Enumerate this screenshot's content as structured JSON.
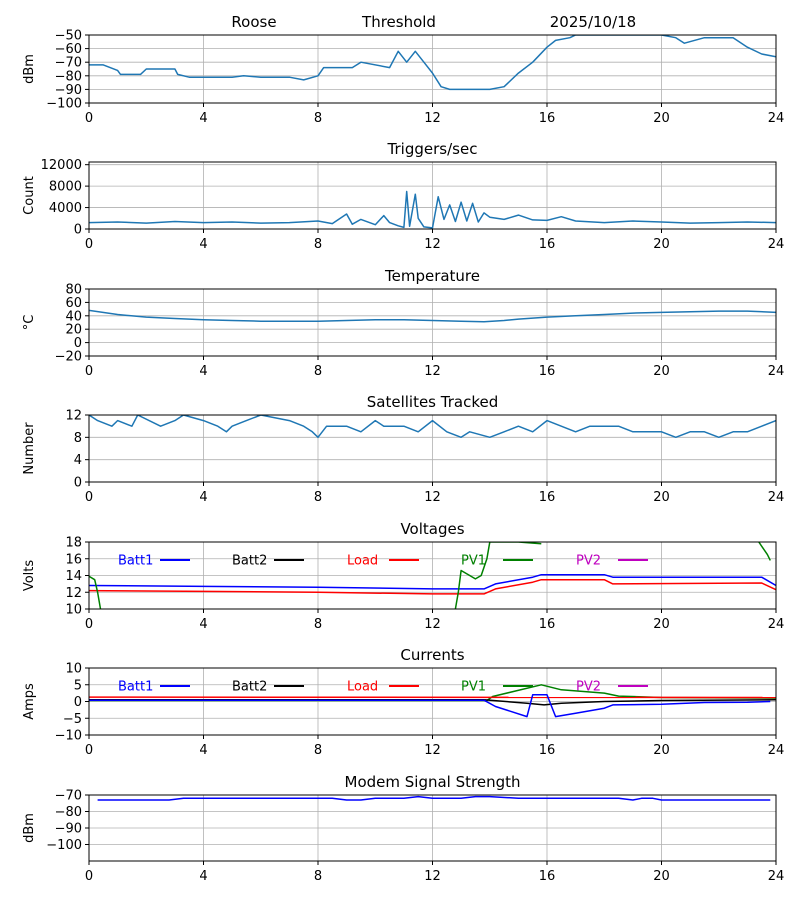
{
  "header": {
    "station": "Roose",
    "mode": "Threshold",
    "date": "2025/10/18"
  },
  "colors": {
    "line": "#1f77b4",
    "grid": "#b0b0b0",
    "batt1": "#0000ff",
    "batt2": "#000000",
    "load": "#ff0000",
    "pv1": "#008000",
    "pv2": "#bf00bf"
  },
  "chart_data": [
    {
      "id": "threshold",
      "type": "line",
      "title": "",
      "ylabel": "dBm",
      "xlabel": "",
      "xlim": [
        0,
        24
      ],
      "xticks": [
        0,
        4,
        8,
        12,
        16,
        20,
        24
      ],
      "ylim": [
        -100,
        -50
      ],
      "yticks": [
        -100,
        -90,
        -80,
        -70,
        -60,
        -50
      ],
      "ytick_labels": [
        "−100",
        "−90",
        "−80",
        "−70",
        "−60",
        "−50"
      ],
      "series": [
        {
          "name": "Threshold",
          "color": "#1f77b4",
          "x": [
            0,
            0.5,
            1,
            1.1,
            1.8,
            2,
            3,
            3.1,
            3.5,
            4,
            5,
            5.4,
            6,
            7,
            7.5,
            8,
            8.2,
            9,
            9.2,
            9.5,
            10.5,
            10.8,
            11.1,
            11.4,
            11.7,
            12,
            12.3,
            12.6,
            13,
            13.4,
            14,
            14.5,
            15,
            15.5,
            16,
            16.3,
            16.8,
            17,
            18,
            19,
            20,
            20.5,
            20.8,
            21.5,
            22,
            22.5,
            23,
            23.5,
            24
          ],
          "y": [
            -72,
            -72,
            -76,
            -79,
            -79,
            -75,
            -75,
            -79,
            -81,
            -81,
            -81,
            -80,
            -81,
            -81,
            -83,
            -80,
            -74,
            -74,
            -74,
            -70,
            -74,
            -62,
            -70,
            -62,
            -70,
            -78,
            -88,
            -90,
            -90,
            -90,
            -90,
            -88,
            -78,
            -70,
            -59,
            -54,
            -52,
            -50,
            -50,
            -50,
            -50,
            -52,
            -56,
            -52,
            -52,
            -52,
            -59,
            -64,
            -66
          ]
        }
      ]
    },
    {
      "id": "triggers",
      "type": "line",
      "title": "Triggers/sec",
      "ylabel": "Count",
      "xlabel": "",
      "xlim": [
        0,
        24
      ],
      "xticks": [
        0,
        4,
        8,
        12,
        16,
        20,
        24
      ],
      "ylim": [
        0,
        12500
      ],
      "yticks": [
        0,
        4000,
        8000,
        12000
      ],
      "ytick_labels": [
        "0",
        "4000",
        "8000",
        "12000"
      ],
      "series": [
        {
          "name": "Triggers",
          "color": "#1f77b4",
          "x": [
            0,
            1,
            2,
            3,
            4,
            5,
            6,
            7,
            8,
            8.5,
            9,
            9.2,
            9.5,
            10,
            10.3,
            10.5,
            10.8,
            11,
            11.1,
            11.2,
            11.4,
            11.5,
            11.7,
            12,
            12.2,
            12.4,
            12.6,
            12.8,
            13,
            13.2,
            13.4,
            13.6,
            13.8,
            14,
            14.5,
            15,
            15.5,
            16,
            16.5,
            17,
            18,
            19,
            20,
            21,
            22,
            23,
            24
          ],
          "y": [
            1200,
            1300,
            1100,
            1400,
            1200,
            1300,
            1100,
            1200,
            1500,
            1000,
            2800,
            900,
            1800,
            800,
            2500,
            1200,
            600,
            300,
            7000,
            500,
            6500,
            2000,
            400,
            200,
            6000,
            1800,
            4500,
            1400,
            5000,
            1500,
            4800,
            1300,
            3000,
            2200,
            1800,
            2600,
            1700,
            1600,
            2300,
            1500,
            1200,
            1500,
            1300,
            1100,
            1200,
            1300,
            1200
          ]
        }
      ]
    },
    {
      "id": "temperature",
      "type": "line",
      "title": "Temperature",
      "ylabel": "°C",
      "xlabel": "",
      "xlim": [
        0,
        24
      ],
      "xticks": [
        0,
        4,
        8,
        12,
        16,
        20,
        24
      ],
      "ylim": [
        -20,
        80
      ],
      "yticks": [
        -20,
        0,
        20,
        40,
        60,
        80
      ],
      "ytick_labels": [
        "−20",
        "0",
        "20",
        "40",
        "60",
        "80"
      ],
      "series": [
        {
          "name": "Temperature",
          "color": "#1f77b4",
          "x": [
            0,
            1,
            2,
            3,
            4,
            5,
            6,
            7,
            8,
            9,
            10,
            11,
            12,
            13,
            13.8,
            14.5,
            15,
            16,
            17,
            18,
            19,
            20,
            21,
            22,
            23,
            24
          ],
          "y": [
            48,
            42,
            38,
            36,
            34,
            33,
            32,
            32,
            32,
            33,
            34,
            34,
            33,
            32,
            31,
            33,
            35,
            38,
            40,
            42,
            44,
            45,
            46,
            47,
            47,
            45
          ]
        }
      ]
    },
    {
      "id": "satellites",
      "type": "line",
      "title": "Satellites Tracked",
      "ylabel": "Number",
      "xlabel": "",
      "xlim": [
        0,
        24
      ],
      "xticks": [
        0,
        4,
        8,
        12,
        16,
        20,
        24
      ],
      "ylim": [
        0,
        12
      ],
      "yticks": [
        0,
        4,
        8,
        12
      ],
      "ytick_labels": [
        "0",
        "4",
        "8",
        "12"
      ],
      "series": [
        {
          "name": "Satellites",
          "color": "#1f77b4",
          "x": [
            0,
            0.3,
            0.8,
            1,
            1.5,
            1.7,
            2.5,
            3,
            3.3,
            4,
            4.5,
            4.8,
            5,
            5.5,
            6,
            7,
            7.5,
            7.8,
            8,
            8.3,
            9,
            9.5,
            10,
            10.3,
            11,
            11.5,
            12,
            12.5,
            13,
            13.3,
            14,
            14.5,
            15,
            15.5,
            16,
            16.5,
            17,
            17.5,
            18,
            18.5,
            19,
            19.5,
            20,
            20.5,
            21,
            21.5,
            22,
            22.5,
            23,
            23.5,
            24
          ],
          "y": [
            12,
            11,
            10,
            11,
            10,
            12,
            10,
            11,
            12,
            11,
            10,
            9,
            10,
            11,
            12,
            11,
            10,
            9,
            8,
            10,
            10,
            9,
            11,
            10,
            10,
            9,
            11,
            9,
            8,
            9,
            8,
            9,
            10,
            9,
            11,
            10,
            9,
            10,
            10,
            10,
            9,
            9,
            9,
            8,
            9,
            9,
            8,
            9,
            9,
            10,
            11
          ]
        }
      ]
    },
    {
      "id": "voltages",
      "type": "line",
      "title": "Voltages",
      "ylabel": "Volts",
      "xlabel": "",
      "xlim": [
        0,
        24
      ],
      "xticks": [
        0,
        4,
        8,
        12,
        16,
        20,
        24
      ],
      "ylim": [
        10,
        18
      ],
      "yticks": [
        10,
        12,
        14,
        16,
        18
      ],
      "ytick_labels": [
        "10",
        "12",
        "14",
        "16",
        "18"
      ],
      "legend": [
        "Batt1",
        "Batt2",
        "Load",
        "PV1",
        "PV2"
      ],
      "series": [
        {
          "name": "Batt1",
          "color": "#0000ff",
          "x": [
            0,
            4,
            8,
            12,
            13.8,
            14.2,
            15.5,
            15.8,
            18,
            18.3,
            23.5,
            24
          ],
          "y": [
            12.8,
            12.7,
            12.6,
            12.4,
            12.4,
            13,
            13.8,
            14.1,
            14.1,
            13.8,
            13.8,
            12.8
          ]
        },
        {
          "name": "Load",
          "color": "#ff0000",
          "x": [
            0,
            4,
            8,
            12,
            13.8,
            14.2,
            15.5,
            15.8,
            18,
            18.3,
            23.5,
            24
          ],
          "y": [
            12.2,
            12.1,
            12,
            11.8,
            11.8,
            12.4,
            13.2,
            13.5,
            13.5,
            13,
            13.1,
            12.3
          ]
        },
        {
          "name": "PV1",
          "color": "#008000",
          "x": [
            0,
            0.2,
            0.3,
            0.4
          ],
          "y": [
            13.9,
            13.5,
            12,
            10
          ]
        },
        {
          "name": "PV1",
          "color": "#008000",
          "x": [
            12.8,
            12.9,
            13,
            13.3,
            13.5,
            13.7,
            13.9,
            14,
            15,
            15.8
          ],
          "y": [
            10,
            12,
            14.6,
            14,
            13.6,
            14,
            16,
            18,
            18,
            17.8
          ]
        },
        {
          "name": "PV1",
          "color": "#008000",
          "x": [
            23.4,
            23.7,
            23.8
          ],
          "y": [
            18,
            16.5,
            15.8
          ]
        }
      ]
    },
    {
      "id": "currents",
      "type": "line",
      "title": "Currents",
      "ylabel": "Amps",
      "xlabel": "",
      "xlim": [
        0,
        24
      ],
      "xticks": [
        0,
        4,
        8,
        12,
        16,
        20,
        24
      ],
      "ylim": [
        -10,
        10
      ],
      "yticks": [
        -10,
        -5,
        0,
        5,
        10
      ],
      "ytick_labels": [
        "−10",
        "−5",
        "0",
        "5",
        "10"
      ],
      "legend": [
        "Batt1",
        "Batt2",
        "Load",
        "PV1",
        "PV2"
      ],
      "series": [
        {
          "name": "PV1",
          "color": "#008000",
          "x": [
            0,
            13.9,
            14.1,
            15.8,
            16.5,
            18,
            18.5,
            20,
            24
          ],
          "y": [
            0.3,
            0.3,
            1.5,
            5,
            3.5,
            2.5,
            1.6,
            1.2,
            1
          ]
        },
        {
          "name": "Load",
          "color": "#ff0000",
          "x": [
            0,
            24
          ],
          "y": [
            1.3,
            1.2
          ]
        },
        {
          "name": "Batt2",
          "color": "#000000",
          "x": [
            0,
            13.8,
            15.3,
            15.9,
            16.5,
            18,
            20,
            24
          ],
          "y": [
            0.5,
            0.5,
            -0.5,
            -1,
            -0.5,
            0,
            0.3,
            0.5
          ]
        },
        {
          "name": "Batt1",
          "color": "#0000ff",
          "x": [
            0,
            13.8,
            14.2,
            15.3,
            15.5,
            16,
            16.3,
            17,
            18,
            18.3,
            20,
            21.5,
            23,
            23.8
          ],
          "y": [
            0.4,
            0.4,
            -1.5,
            -4.5,
            2,
            2,
            -4.5,
            -3.5,
            -2,
            -1,
            -0.8,
            -0.3,
            -0.2,
            0
          ]
        }
      ]
    },
    {
      "id": "modem",
      "type": "line",
      "title": "Modem Signal Strength",
      "ylabel": "dBm",
      "xlabel": "",
      "xlim": [
        0,
        24
      ],
      "xticks": [
        0,
        4,
        8,
        12,
        16,
        20,
        24
      ],
      "ylim": [
        -110,
        -70
      ],
      "yticks": [
        -100,
        -90,
        -80,
        -70
      ],
      "ytick_labels": [
        "−100",
        "−90",
        "−80",
        "−70"
      ],
      "series": [
        {
          "name": "Modem",
          "color": "#0000ff",
          "x": [
            0.3,
            1,
            2,
            2.8,
            3.3,
            4,
            5,
            6,
            7,
            8,
            8.5,
            9,
            9.5,
            10,
            11,
            11.5,
            12,
            13,
            13.5,
            14,
            15,
            16,
            17,
            18,
            18.5,
            19,
            19.3,
            19.7,
            20,
            21,
            22,
            23,
            23.8
          ],
          "y": [
            -73,
            -73,
            -73,
            -73,
            -72,
            -72,
            -72,
            -72,
            -72,
            -72,
            -72,
            -73,
            -73,
            -72,
            -72,
            -71,
            -72,
            -72,
            -71,
            -71,
            -72,
            -72,
            -72,
            -72,
            -72,
            -73,
            -72,
            -72,
            -73,
            -73,
            -73,
            -73,
            -73
          ]
        }
      ]
    }
  ]
}
